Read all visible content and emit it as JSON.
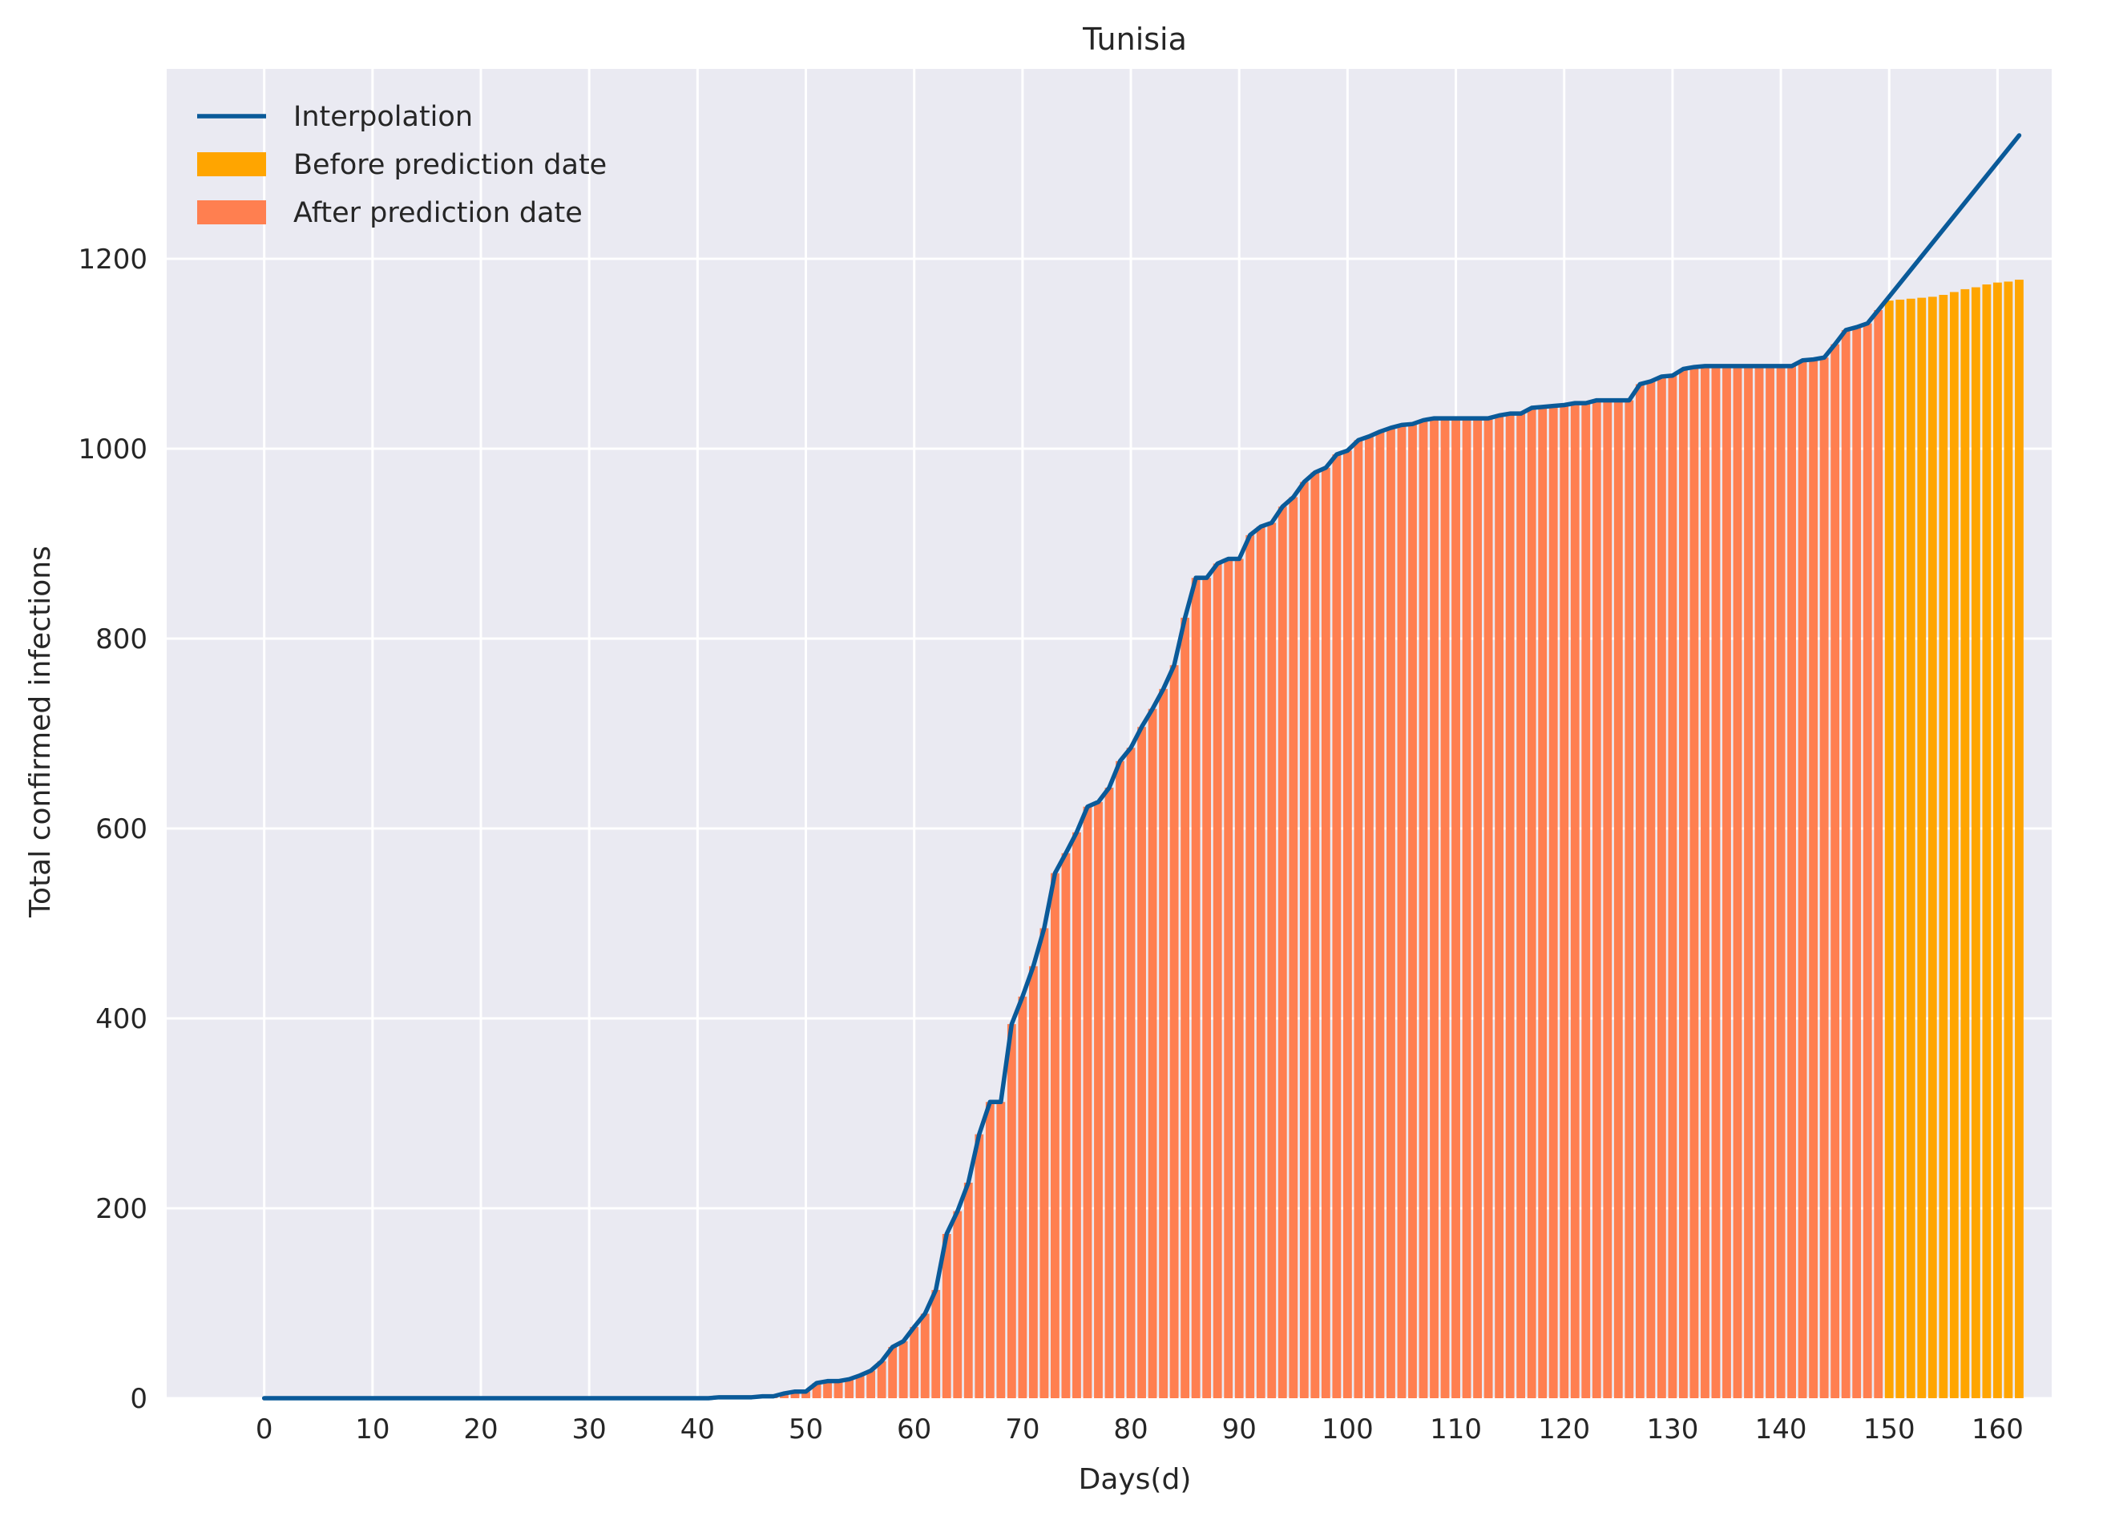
{
  "chart_data": {
    "type": "bar",
    "title": "Tunisia",
    "xlabel": "Days(d)",
    "ylabel": "Total confirmed infections",
    "xlim": [
      -9,
      165
    ],
    "ylim": [
      0,
      1400
    ],
    "xticks": [
      0,
      10,
      20,
      30,
      40,
      50,
      60,
      70,
      80,
      90,
      100,
      110,
      120,
      130,
      140,
      150,
      160
    ],
    "yticks": [
      0,
      200,
      400,
      600,
      800,
      1000,
      1200
    ],
    "grid": true,
    "legend_position": "top-left",
    "colors": {
      "background": "#eaeaf2",
      "grid": "#ffffff",
      "interpolation": "#0a5a99",
      "before": "#ffa500",
      "after": "#ff7f50"
    },
    "legend": [
      {
        "label": "Interpolation",
        "kind": "line",
        "color": "#0a5a99"
      },
      {
        "label": "Before prediction date",
        "kind": "patch",
        "color": "#ffa500"
      },
      {
        "label": "After prediction date",
        "kind": "patch",
        "color": "#ff7f50"
      }
    ],
    "bar_series": [
      {
        "name": "After prediction date",
        "x": [
          42,
          43,
          44,
          45,
          46,
          47,
          48,
          49,
          50,
          51,
          52,
          53,
          54,
          55,
          56,
          57,
          58,
          59,
          60,
          61,
          62,
          63,
          64,
          65,
          66,
          67,
          68,
          69,
          70,
          71,
          72,
          73,
          74,
          75,
          76,
          77,
          78,
          79,
          80,
          81,
          82,
          83,
          84,
          85,
          86,
          87,
          88,
          89,
          90,
          91,
          92,
          93,
          94,
          95,
          96,
          97,
          98,
          99,
          100,
          101,
          102,
          103,
          104,
          105,
          106,
          107,
          108,
          109,
          110,
          111,
          112,
          113,
          114,
          115,
          116,
          117,
          118,
          119,
          120,
          121,
          122,
          123,
          124,
          125,
          126,
          127,
          128,
          129,
          130,
          131,
          132,
          133,
          134,
          135,
          136,
          137,
          138,
          139,
          140,
          141,
          142,
          143,
          144,
          145,
          146,
          147,
          148,
          149
        ],
        "values": [
          1,
          1,
          1,
          1,
          2,
          2,
          5,
          7,
          7,
          16,
          18,
          18,
          20,
          24,
          29,
          39,
          54,
          60,
          75,
          89,
          114,
          173,
          197,
          227,
          278,
          312,
          312,
          394,
          423,
          455,
          495,
          553,
          574,
          596,
          623,
          628,
          643,
          671,
          685,
          707,
          726,
          747,
          772,
          822,
          864,
          864,
          879,
          884,
          884,
          909,
          918,
          922,
          939,
          949,
          965,
          975,
          980,
          994,
          998,
          1009,
          1013,
          1018,
          1022,
          1025,
          1026,
          1030,
          1032,
          1032,
          1032,
          1032,
          1032,
          1032,
          1035,
          1037,
          1037,
          1043,
          1044,
          1045,
          1046,
          1048,
          1048,
          1051,
          1051,
          1051,
          1051,
          1068,
          1071,
          1076,
          1077,
          1084,
          1086,
          1087,
          1087,
          1087,
          1087,
          1087,
          1087,
          1087,
          1087,
          1087,
          1093,
          1094,
          1096,
          1110,
          1125,
          1128,
          1132,
          1146
        ]
      },
      {
        "name": "Before prediction date",
        "x": [
          150,
          151,
          152,
          153,
          154,
          155,
          156,
          157,
          158,
          159,
          160,
          161,
          162
        ],
        "values": [
          1156,
          1157,
          1158,
          1159,
          1160,
          1162,
          1165,
          1168,
          1170,
          1173,
          1175,
          1176,
          1178
        ]
      }
    ],
    "line_series": {
      "name": "Interpolation",
      "x": [
        0,
        41,
        42,
        43,
        44,
        45,
        46,
        47,
        48,
        49,
        50,
        51,
        52,
        53,
        54,
        55,
        56,
        57,
        58,
        59,
        60,
        61,
        62,
        63,
        64,
        65,
        66,
        67,
        68,
        69,
        70,
        71,
        72,
        73,
        74,
        75,
        76,
        77,
        78,
        79,
        80,
        81,
        82,
        83,
        84,
        85,
        86,
        87,
        88,
        89,
        90,
        91,
        92,
        93,
        94,
        95,
        96,
        97,
        98,
        99,
        100,
        101,
        102,
        103,
        104,
        105,
        106,
        107,
        108,
        109,
        110,
        111,
        112,
        113,
        114,
        115,
        116,
        117,
        118,
        119,
        120,
        121,
        122,
        123,
        124,
        125,
        126,
        127,
        128,
        129,
        130,
        131,
        132,
        133,
        134,
        135,
        136,
        137,
        138,
        139,
        140,
        141,
        142,
        143,
        144,
        145,
        146,
        147,
        148,
        149,
        162
      ],
      "y": [
        0,
        0,
        1,
        1,
        1,
        1,
        2,
        2,
        5,
        7,
        7,
        16,
        18,
        18,
        20,
        24,
        29,
        39,
        54,
        60,
        75,
        89,
        114,
        173,
        197,
        227,
        278,
        312,
        312,
        394,
        423,
        455,
        495,
        553,
        574,
        596,
        623,
        628,
        643,
        671,
        685,
        707,
        726,
        747,
        772,
        822,
        864,
        864,
        879,
        884,
        884,
        909,
        918,
        922,
        939,
        949,
        965,
        975,
        980,
        994,
        998,
        1009,
        1013,
        1018,
        1022,
        1025,
        1026,
        1030,
        1032,
        1032,
        1032,
        1032,
        1032,
        1032,
        1035,
        1037,
        1037,
        1043,
        1044,
        1045,
        1046,
        1048,
        1048,
        1051,
        1051,
        1051,
        1051,
        1068,
        1071,
        1076,
        1077,
        1084,
        1086,
        1087,
        1087,
        1087,
        1087,
        1087,
        1087,
        1087,
        1087,
        1087,
        1093,
        1094,
        1096,
        1110,
        1125,
        1128,
        1132,
        1146,
        1330
      ]
    }
  }
}
